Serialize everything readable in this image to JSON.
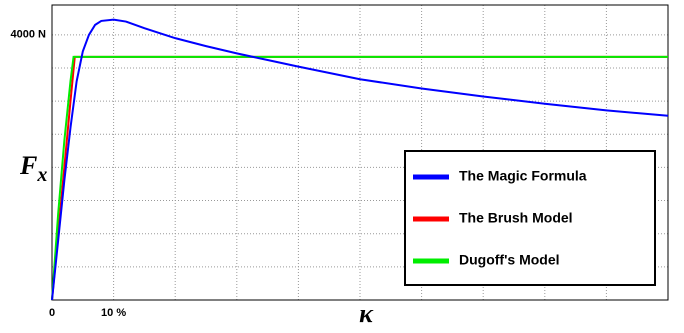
{
  "chart_data": {
    "type": "line",
    "ylabel": "F",
    "ylabel_sub": "x",
    "xlabel": "κ",
    "xlim": [
      0,
      100
    ],
    "ylim": [
      0,
      4450
    ],
    "xticks": [
      0,
      {
        "value": 10,
        "label": "10 %"
      },
      {
        "value": 20,
        "label": null
      },
      {
        "value": 30,
        "label": null
      },
      {
        "value": 40,
        "label": null
      },
      {
        "value": 50,
        "label": null
      },
      {
        "value": 60,
        "label": null
      },
      {
        "value": 70,
        "label": null
      },
      {
        "value": 80,
        "label": null
      },
      {
        "value": 90,
        "label": null
      },
      {
        "value": 100,
        "label": null
      }
    ],
    "yticks": [
      {
        "value": 500,
        "label": null
      },
      {
        "value": 1000,
        "label": null
      },
      {
        "value": 1500,
        "label": null
      },
      {
        "value": 2000,
        "label": null
      },
      {
        "value": 2500,
        "label": null
      },
      {
        "value": 3000,
        "label": null
      },
      {
        "value": 3500,
        "label": null
      },
      {
        "value": 4000,
        "label": "4000 N"
      }
    ],
    "grid": true,
    "legend": "lower right",
    "series": [
      {
        "name": "The Magic Formula",
        "color": "#0000ff",
        "x": [
          0,
          1,
          2,
          3,
          4,
          5,
          6,
          7,
          8,
          10,
          12,
          15,
          20,
          25,
          30,
          35,
          40,
          50,
          60,
          70,
          80,
          90,
          100
        ],
        "values": [
          0,
          900,
          1800,
          2600,
          3300,
          3750,
          4000,
          4150,
          4210,
          4230,
          4200,
          4100,
          3950,
          3830,
          3720,
          3620,
          3520,
          3330,
          3190,
          3070,
          2960,
          2860,
          2780
        ]
      },
      {
        "name": "The Brush Model",
        "color": "#ff0000",
        "x": [
          0,
          1,
          2,
          3,
          3.7,
          100
        ],
        "values": [
          0,
          1000,
          2000,
          3000,
          3668,
          3668
        ]
      },
      {
        "name": "Dugoff's Model",
        "color": "#00ee00",
        "x": [
          0,
          1,
          2,
          3,
          3.5,
          100
        ],
        "values": [
          0,
          1300,
          2400,
          3300,
          3668,
          3668
        ]
      }
    ]
  }
}
